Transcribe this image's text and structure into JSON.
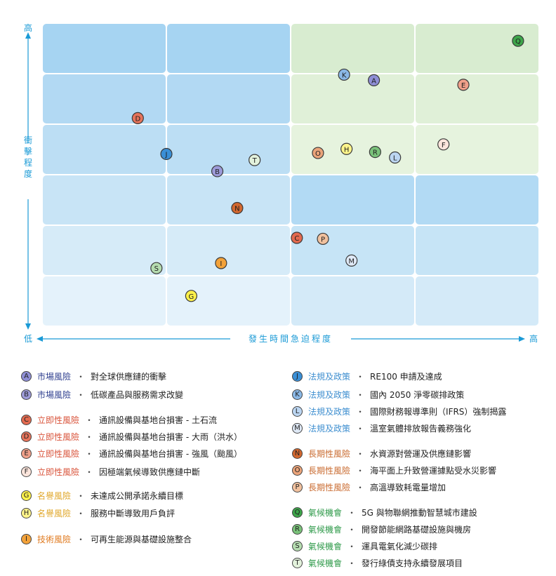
{
  "chart_data": {
    "type": "scatter",
    "title": "",
    "xlabel": "發生時間急迫程度",
    "ylabel": "衝擊程度",
    "x_low_label": "低",
    "x_high_label": "高",
    "y_low_label": "低",
    "y_high_label": "高",
    "xlim": [
      0,
      4
    ],
    "ylim": [
      0,
      6
    ],
    "grid": {
      "cols": 4,
      "rows": 6
    },
    "colors": {
      "grid_cells": [
        [
          "#a6d4f2",
          "#a6d4f2",
          "#d8ecd0",
          "#d8ecd0"
        ],
        [
          "#b2d9f3",
          "#b2d9f3",
          "#e0f0d8",
          "#e0f0d8"
        ],
        [
          "#bcdef4",
          "#bcdef4",
          "#e6f3de",
          "#e6f3de"
        ],
        [
          "#c8e4f6",
          "#c8e4f6",
          "#b2daf4",
          "#b2daf4"
        ],
        [
          "#d6ebf8",
          "#d6ebf8",
          "#c6e4f6",
          "#c6e4f6"
        ],
        [
          "#e4f2fb",
          "#e4f2fb",
          "#d4eaf8",
          "#d4eaf8"
        ]
      ],
      "axis": "#1a9ad6",
      "category_colors": {
        "market": "#2f3f8f",
        "acute": "#d9533a",
        "reputation": "#e0a72a",
        "tech": "#e07a1f",
        "policy": "#3f8fd0",
        "chronic": "#c96a2f",
        "opportunity": "#2f9a4a"
      }
    },
    "points": [
      {
        "label": "A",
        "x": 2.67,
        "y": 4.87,
        "fill": "#8f8fd6"
      },
      {
        "label": "B",
        "x": 1.41,
        "y": 3.07,
        "fill": "#9c9ad8"
      },
      {
        "label": "C",
        "x": 2.05,
        "y": 1.75,
        "fill": "#e36a4f"
      },
      {
        "label": "D",
        "x": 0.77,
        "y": 4.12,
        "fill": "#e6735a"
      },
      {
        "label": "E",
        "x": 3.39,
        "y": 4.78,
        "fill": "#f0a08a"
      },
      {
        "label": "F",
        "x": 3.23,
        "y": 3.6,
        "fill": "#fce5dc"
      },
      {
        "label": "G",
        "x": 1.2,
        "y": 0.6,
        "fill": "#fff24a"
      },
      {
        "label": "H",
        "x": 2.45,
        "y": 3.51,
        "fill": "#fff58a"
      },
      {
        "label": "I",
        "x": 1.44,
        "y": 1.25,
        "fill": "#f3a23a"
      },
      {
        "label": "J",
        "x": 1.0,
        "y": 3.41,
        "fill": "#3a8fd6"
      },
      {
        "label": "K",
        "x": 2.43,
        "y": 4.98,
        "fill": "#8ab8e6"
      },
      {
        "label": "L",
        "x": 2.84,
        "y": 3.34,
        "fill": "#bcd6f2"
      },
      {
        "label": "M",
        "x": 2.49,
        "y": 1.3,
        "fill": "#dfe9f6"
      },
      {
        "label": "N",
        "x": 1.57,
        "y": 2.34,
        "fill": "#d2672f"
      },
      {
        "label": "O",
        "x": 2.22,
        "y": 3.43,
        "fill": "#eba47a"
      },
      {
        "label": "P",
        "x": 2.26,
        "y": 1.73,
        "fill": "#f1c19e"
      },
      {
        "label": "Q",
        "x": 3.83,
        "y": 5.65,
        "fill": "#3da54a"
      },
      {
        "label": "R",
        "x": 2.68,
        "y": 3.45,
        "fill": "#7ac27a"
      },
      {
        "label": "S",
        "x": 0.92,
        "y": 1.15,
        "fill": "#b5dcb0"
      },
      {
        "label": "T",
        "x": 1.71,
        "y": 3.29,
        "fill": "#e3f2dc"
      }
    ]
  },
  "legend": {
    "separator": "・",
    "left": [
      {
        "letter": "A",
        "category": "市場風險",
        "desc": "對全球供應鏈的衝擊",
        "fill": "#8f8fd6",
        "cat_color": "#2f3f8f"
      },
      {
        "letter": "B",
        "category": "市場風險",
        "desc": "低碳產品與服務需求改變",
        "fill": "#9c9ad8",
        "cat_color": "#2f3f8f"
      },
      {
        "letter": "C",
        "category": "立即性風險",
        "desc": "通訊設備與基地台損害 - 土石流",
        "fill": "#e36a4f",
        "cat_color": "#d9533a"
      },
      {
        "letter": "D",
        "category": "立即性風險",
        "desc": "通訊設備與基地台損害 - 大雨（洪水）",
        "fill": "#e6735a",
        "cat_color": "#d9533a"
      },
      {
        "letter": "E",
        "category": "立即性風險",
        "desc": "通訊設備與基地台損害 - 強風（颱風）",
        "fill": "#f0a08a",
        "cat_color": "#d9533a"
      },
      {
        "letter": "F",
        "category": "立即性風險",
        "desc": "因極端氣候導致供應鏈中斷",
        "fill": "#fce5dc",
        "cat_color": "#d9533a"
      },
      {
        "letter": "G",
        "category": "名譽風險",
        "desc": "未達成公開承諾永續目標",
        "fill": "#fff24a",
        "cat_color": "#e0a72a"
      },
      {
        "letter": "H",
        "category": "名譽風險",
        "desc": "服務中斷導致用戶負評",
        "fill": "#fff58a",
        "cat_color": "#e0a72a"
      },
      {
        "letter": "I",
        "category": "技術風險",
        "desc": "可再生能源與基礎設施整合",
        "fill": "#f3a23a",
        "cat_color": "#e07a1f"
      }
    ],
    "right": [
      {
        "letter": "J",
        "category": "法規及政策",
        "desc": "RE100 申請及達成",
        "fill": "#3a8fd6",
        "cat_color": "#3f8fd0"
      },
      {
        "letter": "K",
        "category": "法規及政策",
        "desc": "國內 2050 淨零碳排政策",
        "fill": "#8ab8e6",
        "cat_color": "#3f8fd0"
      },
      {
        "letter": "L",
        "category": "法規及政策",
        "desc": "國際財務報導準則（IFRS）強制揭露",
        "fill": "#bcd6f2",
        "cat_color": "#3f8fd0"
      },
      {
        "letter": "M",
        "category": "法規及政策",
        "desc": "溫室氣體排放報告義務強化",
        "fill": "#dfe9f6",
        "cat_color": "#3f8fd0"
      },
      {
        "letter": "N",
        "category": "長期性風險",
        "desc": "水資源對營運及供應鏈影響",
        "fill": "#d2672f",
        "cat_color": "#c96a2f"
      },
      {
        "letter": "O",
        "category": "長期性風險",
        "desc": "海平面上升致營運據點受水災影響",
        "fill": "#eba47a",
        "cat_color": "#c96a2f"
      },
      {
        "letter": "P",
        "category": "長期性風險",
        "desc": "高溫導致耗電量增加",
        "fill": "#f1c19e",
        "cat_color": "#c96a2f"
      },
      {
        "letter": "Q",
        "category": "氣候機會",
        "desc": "5G 與物聯網推動智慧城市建設",
        "fill": "#3da54a",
        "cat_color": "#2f9a4a"
      },
      {
        "letter": "R",
        "category": "氣候機會",
        "desc": "開發節能網路基礎設施與機房",
        "fill": "#7ac27a",
        "cat_color": "#2f9a4a"
      },
      {
        "letter": "S",
        "category": "氣候機會",
        "desc": "運具電氣化減少碳排",
        "fill": "#b5dcb0",
        "cat_color": "#2f9a4a"
      },
      {
        "letter": "T",
        "category": "氣候機會",
        "desc": "發行綠債支持永續發展項目",
        "fill": "#e3f2dc",
        "cat_color": "#2f9a4a"
      }
    ]
  }
}
